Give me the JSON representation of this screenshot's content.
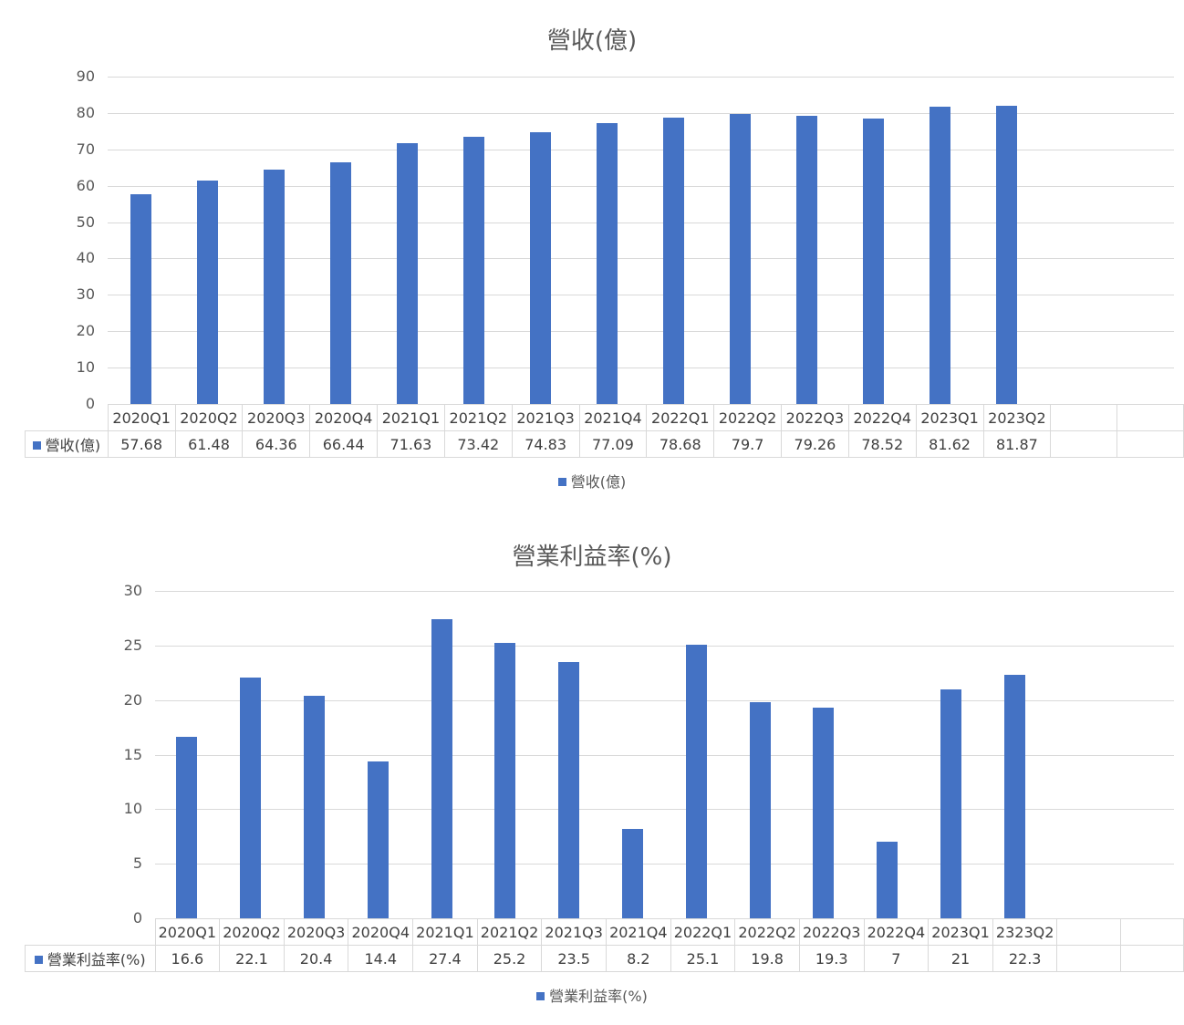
{
  "charts": [
    {
      "title": "營收(億)",
      "series_name": "營收(億)",
      "legend": "營收(億)",
      "yticks": [
        "90",
        "80",
        "70",
        "60",
        "50",
        "40",
        "30",
        "20",
        "10",
        "0"
      ],
      "categories": [
        "2020Q1",
        "2020Q2",
        "2020Q3",
        "2020Q4",
        "2021Q1",
        "2021Q2",
        "2021Q3",
        "2021Q4",
        "2022Q1",
        "2022Q2",
        "2022Q3",
        "2022Q4",
        "2023Q1",
        "2023Q2",
        "",
        ""
      ],
      "values": [
        "57.68",
        "61.48",
        "64.36",
        "66.44",
        "71.63",
        "73.42",
        "74.83",
        "77.09",
        "78.68",
        "79.7",
        "79.26",
        "78.52",
        "81.62",
        "81.87",
        "",
        ""
      ]
    },
    {
      "title": "營業利益率(%)",
      "series_name": "營業利益率(%)",
      "legend": "營業利益率(%)",
      "yticks": [
        "30",
        "25",
        "20",
        "15",
        "10",
        "5",
        "0"
      ],
      "categories": [
        "2020Q1",
        "2020Q2",
        "2020Q3",
        "2020Q4",
        "2021Q1",
        "2021Q2",
        "2021Q3",
        "2021Q4",
        "2022Q1",
        "2022Q2",
        "2022Q3",
        "2022Q4",
        "2023Q1",
        "2323Q2",
        "",
        ""
      ],
      "values": [
        "16.6",
        "22.1",
        "20.4",
        "14.4",
        "27.4",
        "25.2",
        "23.5",
        "8.2",
        "25.1",
        "19.8",
        "19.3",
        "7",
        "21",
        "22.3",
        "",
        ""
      ]
    }
  ],
  "colors": {
    "bar": "#4472c4",
    "grid": "#d9d9d9",
    "text": "#595959"
  },
  "chart_data": [
    {
      "type": "bar",
      "title": "營收(億)",
      "xlabel": "",
      "ylabel": "",
      "ylim": [
        0,
        90
      ],
      "yticks": [
        0,
        10,
        20,
        30,
        40,
        50,
        60,
        70,
        80,
        90
      ],
      "grid": true,
      "legend_position": "bottom",
      "data_table": true,
      "categories": [
        "2020Q1",
        "2020Q2",
        "2020Q3",
        "2020Q4",
        "2021Q1",
        "2021Q2",
        "2021Q3",
        "2021Q4",
        "2022Q1",
        "2022Q2",
        "2022Q3",
        "2022Q4",
        "2023Q1",
        "2023Q2"
      ],
      "series": [
        {
          "name": "營收(億)",
          "color": "#4472c4",
          "values": [
            57.68,
            61.48,
            64.36,
            66.44,
            71.63,
            73.42,
            74.83,
            77.09,
            78.68,
            79.7,
            79.26,
            78.52,
            81.62,
            81.87
          ]
        }
      ]
    },
    {
      "type": "bar",
      "title": "營業利益率(%)",
      "xlabel": "",
      "ylabel": "",
      "ylim": [
        0,
        30
      ],
      "yticks": [
        0,
        5,
        10,
        15,
        20,
        25,
        30
      ],
      "grid": true,
      "legend_position": "bottom",
      "data_table": true,
      "categories": [
        "2020Q1",
        "2020Q2",
        "2020Q3",
        "2020Q4",
        "2021Q1",
        "2021Q2",
        "2021Q3",
        "2021Q4",
        "2022Q1",
        "2022Q2",
        "2022Q3",
        "2022Q4",
        "2023Q1",
        "2323Q2"
      ],
      "series": [
        {
          "name": "營業利益率(%)",
          "color": "#4472c4",
          "values": [
            16.6,
            22.1,
            20.4,
            14.4,
            27.4,
            25.2,
            23.5,
            8.2,
            25.1,
            19.8,
            19.3,
            7,
            21,
            22.3
          ]
        }
      ]
    }
  ]
}
